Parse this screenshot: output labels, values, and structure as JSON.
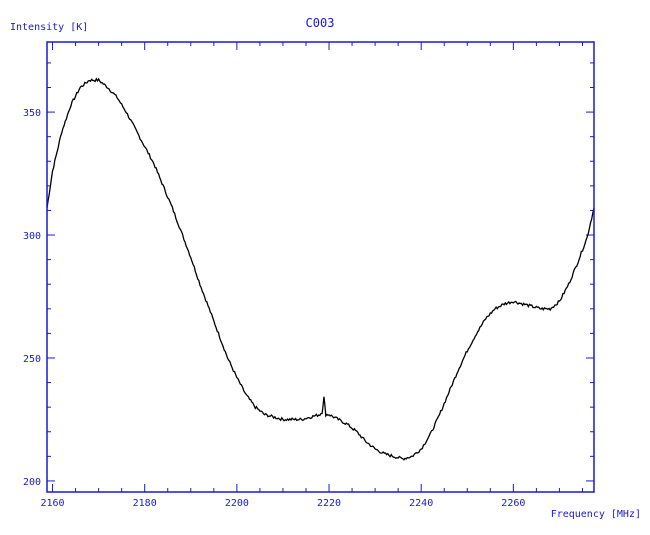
{
  "chart_data": {
    "type": "line",
    "title": "C003",
    "xlabel": "Frequency  [MHz]",
    "ylabel": "Intensity [K]",
    "xlim": [
      2158.8,
      2277.5
    ],
    "ylim": [
      195.5,
      378.5
    ],
    "xticks": [
      2160,
      2180,
      2200,
      2220,
      2240,
      2260
    ],
    "yticks": [
      200,
      250,
      300,
      350
    ],
    "grid": false,
    "colors": {
      "frame": "#1a1acc",
      "line": "#000000",
      "text": "#1a1acc"
    },
    "series": [
      {
        "x": [
          2158.8,
          2160,
          2162,
          2164,
          2166,
          2168,
          2170,
          2172,
          2174,
          2176,
          2178,
          2180,
          2182,
          2184,
          2186,
          2188,
          2190,
          2192,
          2194,
          2196,
          2198,
          2200,
          2202,
          2204,
          2206,
          2208,
          2210,
          2212,
          2214,
          2216,
          2218,
          2218.5,
          2218.9,
          2219.3,
          2220,
          2222,
          2224,
          2226,
          2228,
          2230,
          2232,
          2234,
          2236,
          2238,
          2240,
          2242,
          2244,
          2246,
          2248,
          2250,
          2252,
          2254,
          2256,
          2258,
          2260,
          2262,
          2264,
          2266,
          2268,
          2270,
          2272,
          2274,
          2276,
          2277.5
        ],
        "y": [
          311,
          326,
          342,
          353,
          360,
          363,
          363,
          360,
          356,
          350,
          343,
          336,
          329,
          320,
          311,
          301,
          291,
          280,
          270,
          260,
          250,
          242,
          235,
          230,
          227,
          226,
          225,
          225,
          225,
          226,
          227,
          228,
          234,
          227,
          227,
          225,
          223,
          220,
          216,
          213,
          211,
          210,
          209,
          210,
          213,
          219,
          227,
          236,
          245,
          253,
          260,
          266,
          270,
          272,
          273,
          272,
          271,
          270,
          270,
          273,
          280,
          289,
          299,
          311
        ]
      }
    ]
  }
}
